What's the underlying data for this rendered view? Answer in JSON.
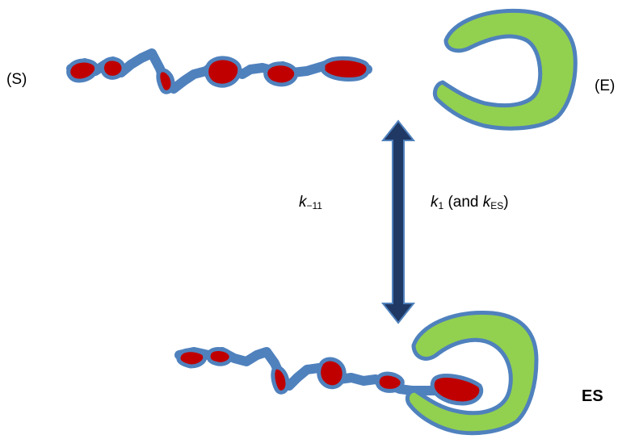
{
  "labels": {
    "substrate": "(S)",
    "enzyme": "(E)",
    "complex": "ES",
    "k_reverse_symbol": "k",
    "k_reverse_subscript": "−11",
    "k_forward_symbol": "k",
    "k_forward_subscript": "1",
    "k_forward_mid": " (and ",
    "k_es_symbol": "k",
    "k_es_subscript": "ES",
    "k_forward_close": ")"
  },
  "colors": {
    "substrate_fill": "#c00000",
    "molecule_outline": "#4f81bd",
    "enzyme_fill": "#92d050",
    "arrow_fill": "#1f3864"
  },
  "icons": {
    "equilibrium_arrow": "double-headed-vertical-arrow"
  }
}
